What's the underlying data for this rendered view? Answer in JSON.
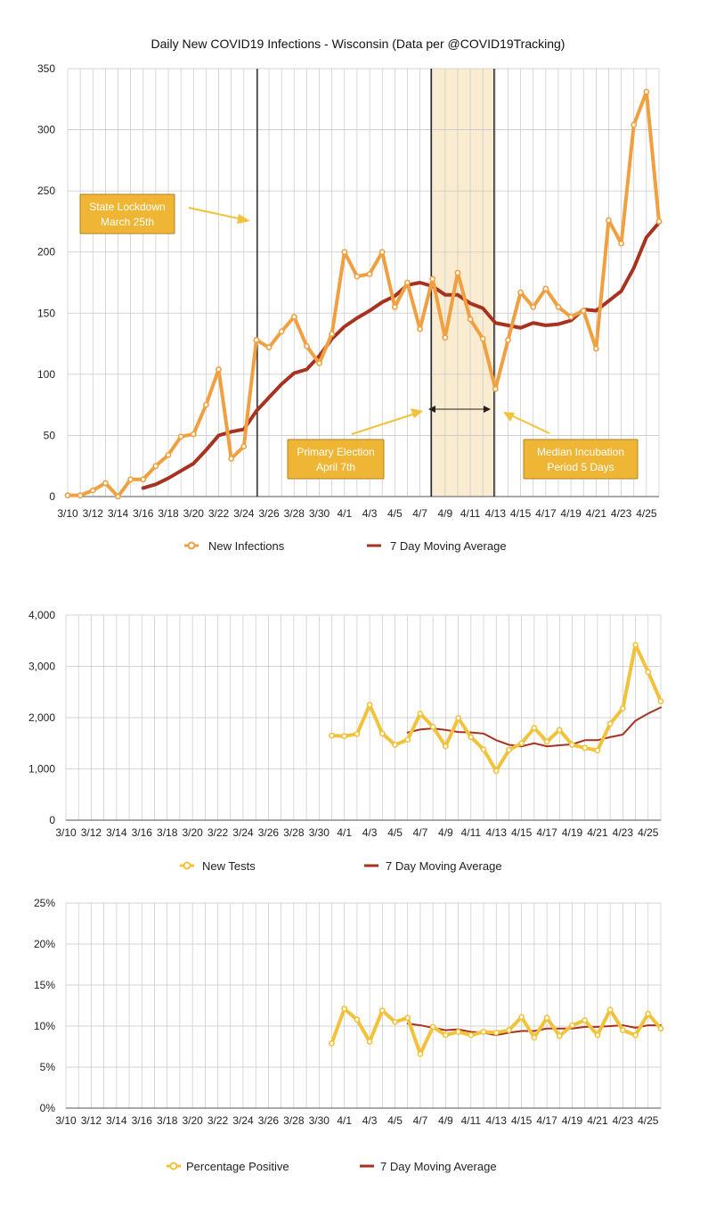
{
  "colors": {
    "infections": "#f0a040",
    "infections_marker_fill": "#ffffff",
    "tests": "#f2c23a",
    "positive": "#f2c23a",
    "moving_average": "#a83220",
    "gridline": "#c8c8c8",
    "annotation_box": "#eeb634",
    "annotation_box_border": "#b08020",
    "incubation_band": "#faecd0",
    "arrow": "#f2c23a"
  },
  "charts": [
    {
      "id": "infections",
      "title": "Daily New COVID19 Infections - Wisconsin (Data per @COVID19Tracking)",
      "annotations": {
        "lockdown": [
          "State Lockdown",
          "March 25th"
        ],
        "election": [
          "Primary Election",
          "April 7th"
        ],
        "incubation": [
          "Median Incubation",
          "Period 5 Days"
        ]
      },
      "legend": [
        {
          "label": "New Infections",
          "marker": "circle-icon"
        },
        {
          "label": "7 Day Moving Average",
          "marker": "line-icon"
        }
      ]
    },
    {
      "id": "tests",
      "title": "",
      "legend": [
        {
          "label": "New Tests",
          "marker": "circle-icon"
        },
        {
          "label": "7 Day Moving Average",
          "marker": "line-icon"
        }
      ]
    },
    {
      "id": "positive",
      "title": "",
      "legend": [
        {
          "label": "Percentage Positive",
          "marker": "circle-icon"
        },
        {
          "label": "7 Day Moving Average",
          "marker": "line-icon"
        }
      ]
    }
  ],
  "chart_data": [
    {
      "type": "line",
      "title": "Daily New COVID19 Infections - Wisconsin (Data per @COVID19Tracking)",
      "x": [
        "3/10",
        "3/11",
        "3/12",
        "3/13",
        "3/14",
        "3/15",
        "3/16",
        "3/17",
        "3/18",
        "3/19",
        "3/20",
        "3/21",
        "3/22",
        "3/23",
        "3/24",
        "3/25",
        "3/26",
        "3/27",
        "3/28",
        "3/29",
        "3/30",
        "3/31",
        "4/1",
        "4/2",
        "4/3",
        "4/4",
        "4/5",
        "4/6",
        "4/7",
        "4/8",
        "4/9",
        "4/10",
        "4/11",
        "4/12",
        "4/13",
        "4/14",
        "4/15",
        "4/16",
        "4/17",
        "4/18",
        "4/19",
        "4/20",
        "4/21",
        "4/22",
        "4/23",
        "4/24",
        "4/25",
        "4/26"
      ],
      "x_tick_labels": [
        "3/10",
        "3/12",
        "3/14",
        "3/16",
        "3/18",
        "3/20",
        "3/22",
        "3/24",
        "3/26",
        "3/28",
        "3/30",
        "4/1",
        "4/3",
        "4/5",
        "4/7",
        "4/9",
        "4/11",
        "4/13",
        "4/15",
        "4/17",
        "4/19",
        "4/21",
        "4/23",
        "4/25"
      ],
      "ylim": [
        0,
        350
      ],
      "y_ticks": [
        "0",
        "50",
        "100",
        "150",
        "200",
        "250",
        "300",
        "350"
      ],
      "grid": true,
      "legend_position": "bottom",
      "series": [
        {
          "name": "New Infections",
          "values": [
            1,
            1,
            5,
            11,
            0,
            14,
            14,
            25,
            34,
            49,
            51,
            75,
            104,
            31,
            41,
            128,
            122,
            135,
            147,
            123,
            109,
            133,
            200,
            180,
            182,
            200,
            155,
            175,
            137,
            178,
            130,
            183,
            145,
            129,
            88,
            128,
            167,
            155,
            170,
            155,
            147,
            152,
            121,
            226,
            207,
            304,
            331,
            225
          ]
        },
        {
          "name": "7 Day Moving Average",
          "values": [
            null,
            null,
            null,
            null,
            null,
            null,
            7,
            10,
            15,
            21,
            27,
            38,
            50,
            53,
            55,
            70,
            81,
            92,
            101,
            104,
            115,
            129,
            139,
            146,
            152,
            159,
            164,
            173,
            175,
            172,
            165,
            165,
            158,
            154,
            142,
            140,
            138,
            142,
            140,
            141,
            144,
            153,
            152,
            160,
            168,
            187,
            212,
            224
          ]
        }
      ],
      "annotations": [
        {
          "text": "State Lockdown March 25th",
          "x": "3/25",
          "kind": "vertical-line"
        },
        {
          "text": "Primary Election April 7th",
          "x": "4/8"
        },
        {
          "text": "Median Incubation Period 5 Days",
          "x_range": [
            "4/8",
            "4/13"
          ],
          "kind": "shaded-band"
        }
      ]
    },
    {
      "type": "line",
      "x": [
        "3/10",
        "3/11",
        "3/12",
        "3/13",
        "3/14",
        "3/15",
        "3/16",
        "3/17",
        "3/18",
        "3/19",
        "3/20",
        "3/21",
        "3/22",
        "3/23",
        "3/24",
        "3/25",
        "3/26",
        "3/27",
        "3/28",
        "3/29",
        "3/30",
        "3/31",
        "4/1",
        "4/2",
        "4/3",
        "4/4",
        "4/5",
        "4/6",
        "4/7",
        "4/8",
        "4/9",
        "4/10",
        "4/11",
        "4/12",
        "4/13",
        "4/14",
        "4/15",
        "4/16",
        "4/17",
        "4/18",
        "4/19",
        "4/20",
        "4/21",
        "4/22",
        "4/23",
        "4/24",
        "4/25",
        "4/26"
      ],
      "x_tick_labels": [
        "3/10",
        "3/12",
        "3/14",
        "3/16",
        "3/18",
        "3/20",
        "3/22",
        "3/24",
        "3/26",
        "3/28",
        "3/30",
        "4/1",
        "4/3",
        "4/5",
        "4/7",
        "4/9",
        "4/11",
        "4/13",
        "4/15",
        "4/17",
        "4/19",
        "4/21",
        "4/23",
        "4/25"
      ],
      "ylim": [
        0,
        4000
      ],
      "y_ticks": [
        "0",
        "1,000",
        "2,000",
        "3,000",
        "4,000"
      ],
      "grid": true,
      "legend_position": "bottom",
      "series": [
        {
          "name": "New Tests",
          "values": [
            null,
            null,
            null,
            null,
            null,
            null,
            null,
            null,
            null,
            null,
            null,
            null,
            null,
            null,
            null,
            null,
            null,
            null,
            null,
            null,
            null,
            1650,
            1640,
            1680,
            2250,
            1690,
            1470,
            1570,
            2080,
            1820,
            1440,
            1990,
            1620,
            1380,
            960,
            1370,
            1500,
            1800,
            1530,
            1760,
            1470,
            1410,
            1360,
            1880,
            2180,
            3420,
            2890,
            2320
          ]
        },
        {
          "name": "7 Day Moving Average",
          "values": [
            null,
            null,
            null,
            null,
            null,
            null,
            null,
            null,
            null,
            null,
            null,
            null,
            null,
            null,
            null,
            null,
            null,
            null,
            null,
            null,
            null,
            null,
            null,
            null,
            null,
            null,
            null,
            1710,
            1770,
            1790,
            1760,
            1720,
            1710,
            1690,
            1560,
            1470,
            1440,
            1500,
            1440,
            1460,
            1480,
            1560,
            1560,
            1620,
            1670,
            1940,
            2080,
            2200
          ]
        }
      ]
    },
    {
      "type": "line",
      "x": [
        "3/10",
        "3/11",
        "3/12",
        "3/13",
        "3/14",
        "3/15",
        "3/16",
        "3/17",
        "3/18",
        "3/19",
        "3/20",
        "3/21",
        "3/22",
        "3/23",
        "3/24",
        "3/25",
        "3/26",
        "3/27",
        "3/28",
        "3/29",
        "3/30",
        "3/31",
        "4/1",
        "4/2",
        "4/3",
        "4/4",
        "4/5",
        "4/6",
        "4/7",
        "4/8",
        "4/9",
        "4/10",
        "4/11",
        "4/12",
        "4/13",
        "4/14",
        "4/15",
        "4/16",
        "4/17",
        "4/18",
        "4/19",
        "4/20",
        "4/21",
        "4/22",
        "4/23",
        "4/24",
        "4/25",
        "4/26"
      ],
      "x_tick_labels": [
        "3/10",
        "3/12",
        "3/14",
        "3/16",
        "3/18",
        "3/20",
        "3/22",
        "3/24",
        "3/26",
        "3/28",
        "3/30",
        "4/1",
        "4/3",
        "4/5",
        "4/7",
        "4/9",
        "4/11",
        "4/13",
        "4/15",
        "4/17",
        "4/19",
        "4/21",
        "4/23",
        "4/25"
      ],
      "ylim": [
        0,
        25
      ],
      "y_ticks": [
        "0%",
        "5%",
        "10%",
        "15%",
        "20%",
        "25%"
      ],
      "grid": true,
      "legend_position": "bottom",
      "series": [
        {
          "name": "Percentage Positive",
          "values": [
            null,
            null,
            null,
            null,
            null,
            null,
            null,
            null,
            null,
            null,
            null,
            null,
            null,
            null,
            null,
            null,
            null,
            null,
            null,
            null,
            null,
            7.9,
            12.1,
            10.8,
            8.1,
            11.9,
            10.5,
            11.0,
            6.6,
            9.9,
            8.9,
            9.3,
            8.9,
            9.3,
            9.2,
            9.5,
            11.1,
            8.6,
            11.0,
            8.8,
            10.1,
            10.7,
            8.9,
            12.0,
            9.5,
            8.9,
            11.5,
            9.7
          ]
        },
        {
          "name": "7 Day Moving Average",
          "values": [
            null,
            null,
            null,
            null,
            null,
            null,
            null,
            null,
            null,
            null,
            null,
            null,
            null,
            null,
            null,
            null,
            null,
            null,
            null,
            null,
            null,
            null,
            null,
            null,
            null,
            null,
            null,
            10.3,
            10.1,
            9.8,
            9.5,
            9.6,
            9.3,
            9.2,
            8.9,
            9.2,
            9.4,
            9.4,
            9.7,
            9.7,
            9.7,
            9.9,
            9.9,
            10.0,
            10.1,
            9.8,
            10.1,
            10.1
          ]
        }
      ]
    }
  ]
}
